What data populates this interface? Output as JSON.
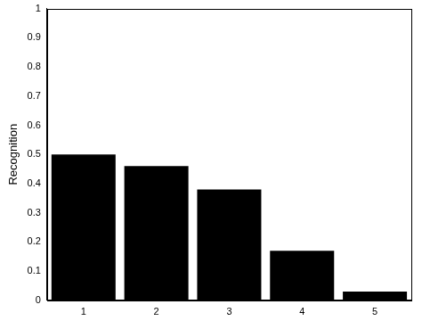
{
  "chart_data": {
    "type": "bar",
    "categories": [
      "1",
      "2",
      "3",
      "4",
      "5"
    ],
    "values": [
      0.5,
      0.46,
      0.38,
      0.17,
      0.03
    ],
    "color": "#000000",
    "ylabel": "Recognition",
    "ylim": [
      0,
      1
    ],
    "yticks": [
      0,
      0.1,
      0.2,
      0.3,
      0.4,
      0.5,
      0.6,
      0.7,
      0.8,
      0.9,
      1
    ],
    "grid": false
  }
}
